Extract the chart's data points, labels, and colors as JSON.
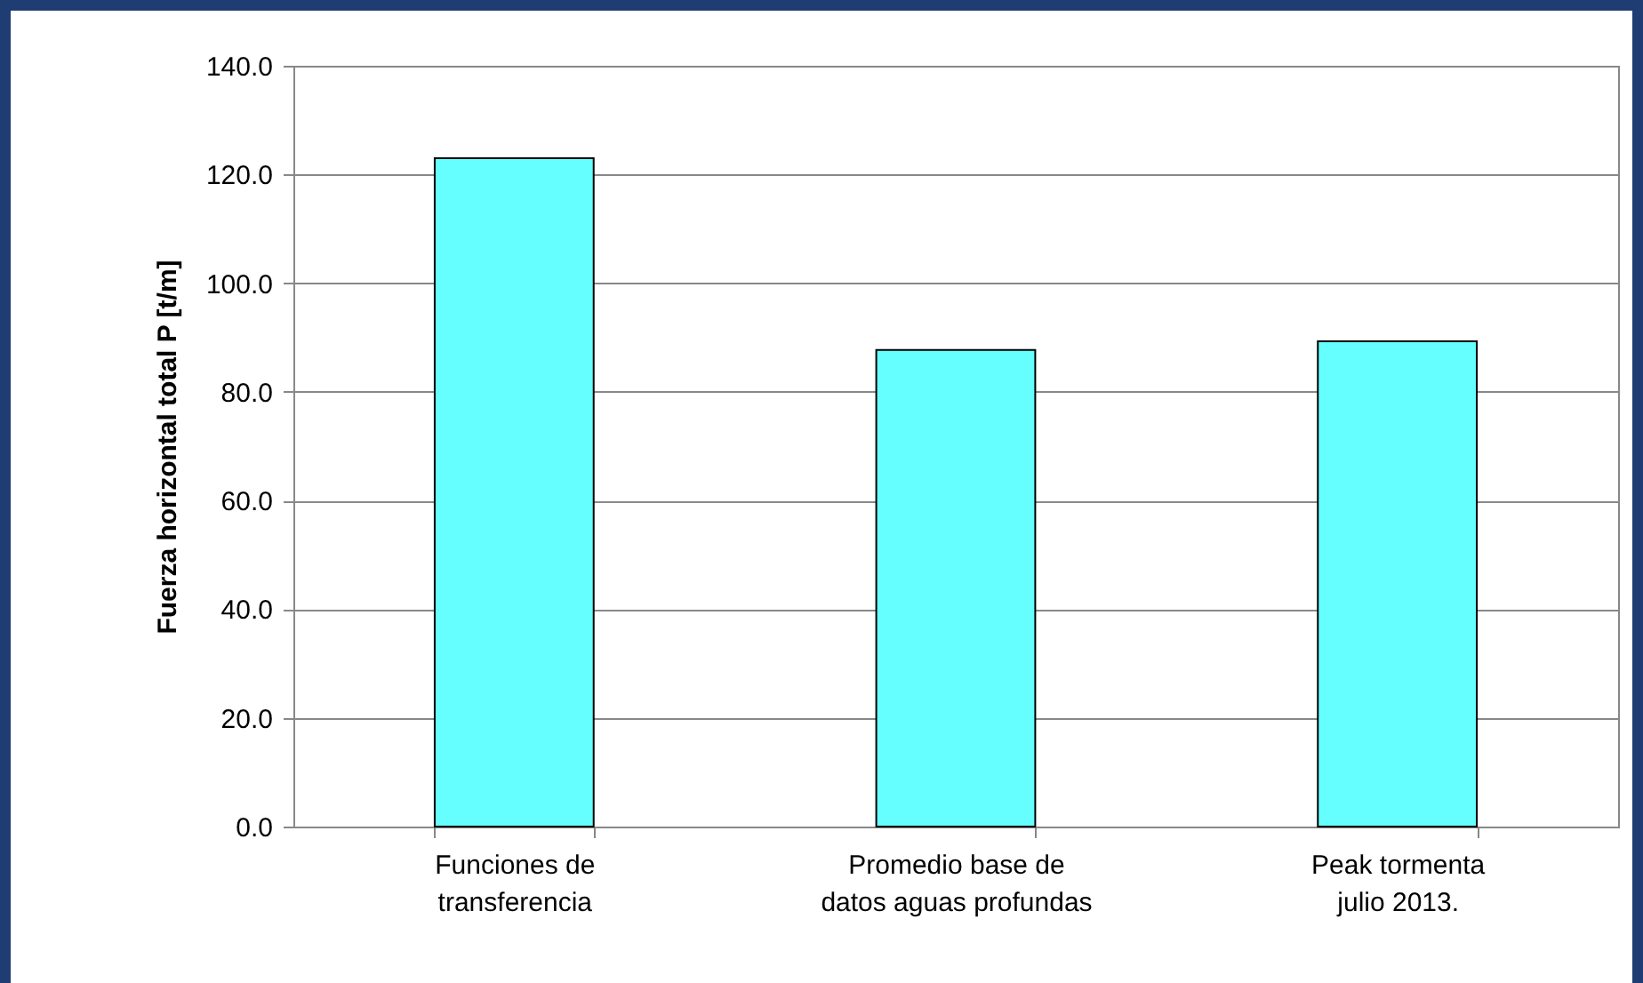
{
  "chart_data": {
    "type": "bar",
    "ylabel": "Fuerza horizontal total P [t/m]",
    "categories": [
      "Funciones de transferencia",
      "Promedio base de datos aguas profundas",
      "Peak tormenta julio 2013."
    ],
    "values": [
      123.0,
      87.7,
      89.3
    ],
    "color": "#66ffff",
    "ylim": [
      0,
      140
    ],
    "yticks": [
      {
        "value": 0,
        "label": "0.0"
      },
      {
        "value": 20,
        "label": "20.0"
      },
      {
        "value": 40,
        "label": "40.0"
      },
      {
        "value": 60,
        "label": "60.0"
      },
      {
        "value": 80,
        "label": "80.0"
      },
      {
        "value": 100,
        "label": "100.0"
      },
      {
        "value": 120,
        "label": "120.0"
      },
      {
        "value": 140,
        "label": "140.0"
      }
    ],
    "grid": "y"
  }
}
